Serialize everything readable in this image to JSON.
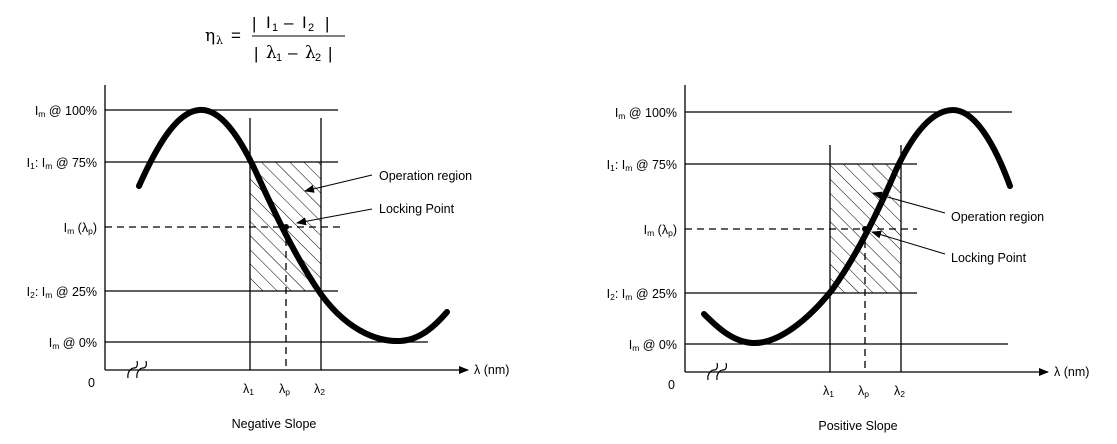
{
  "formula": {
    "lhs_symbol": "η",
    "lhs_sub": "λ",
    "equals": "=",
    "numerator": {
      "bar": "|",
      "a": "I",
      "a_sub": "1",
      "minus": "–",
      "b": "I",
      "b_sub": "2"
    },
    "denominator": {
      "bar": "|",
      "a": "λ",
      "a_sub": "1",
      "minus": "–",
      "b": "λ",
      "b_sub": "2"
    }
  },
  "axis": {
    "origin": "0",
    "x_label": "λ (nm)",
    "x_ticks": [
      {
        "sym": "λ",
        "sub": "1"
      },
      {
        "sym": "λ",
        "sub": "p"
      },
      {
        "sym": "λ",
        "sub": "2"
      }
    ]
  },
  "levels": [
    {
      "prefix": "I",
      "psub": "m",
      "text": " @ 100%"
    },
    {
      "prefix": "I",
      "psub": "1",
      "mid": ": I",
      "msub": "m",
      "text": " @ 75%"
    },
    {
      "prefix": "I",
      "psub": "m",
      "text": " (λ",
      "tsub": "p",
      "close": ")"
    },
    {
      "prefix": "I",
      "psub": "2",
      "mid": ": I",
      "msub": "m",
      "text": " @ 25%"
    },
    {
      "prefix": "I",
      "psub": "m",
      "text": " @ 0%"
    }
  ],
  "panels": [
    {
      "caption": "Negative Slope",
      "annotations": {
        "operation_region": "Operation region",
        "locking_point": "Locking Point"
      }
    },
    {
      "caption": "Positive Slope",
      "annotations": {
        "operation_region": "Operation region",
        "locking_point": "Locking Point"
      }
    }
  ],
  "colors": {
    "ink": "#000000",
    "background": "#ffffff"
  }
}
